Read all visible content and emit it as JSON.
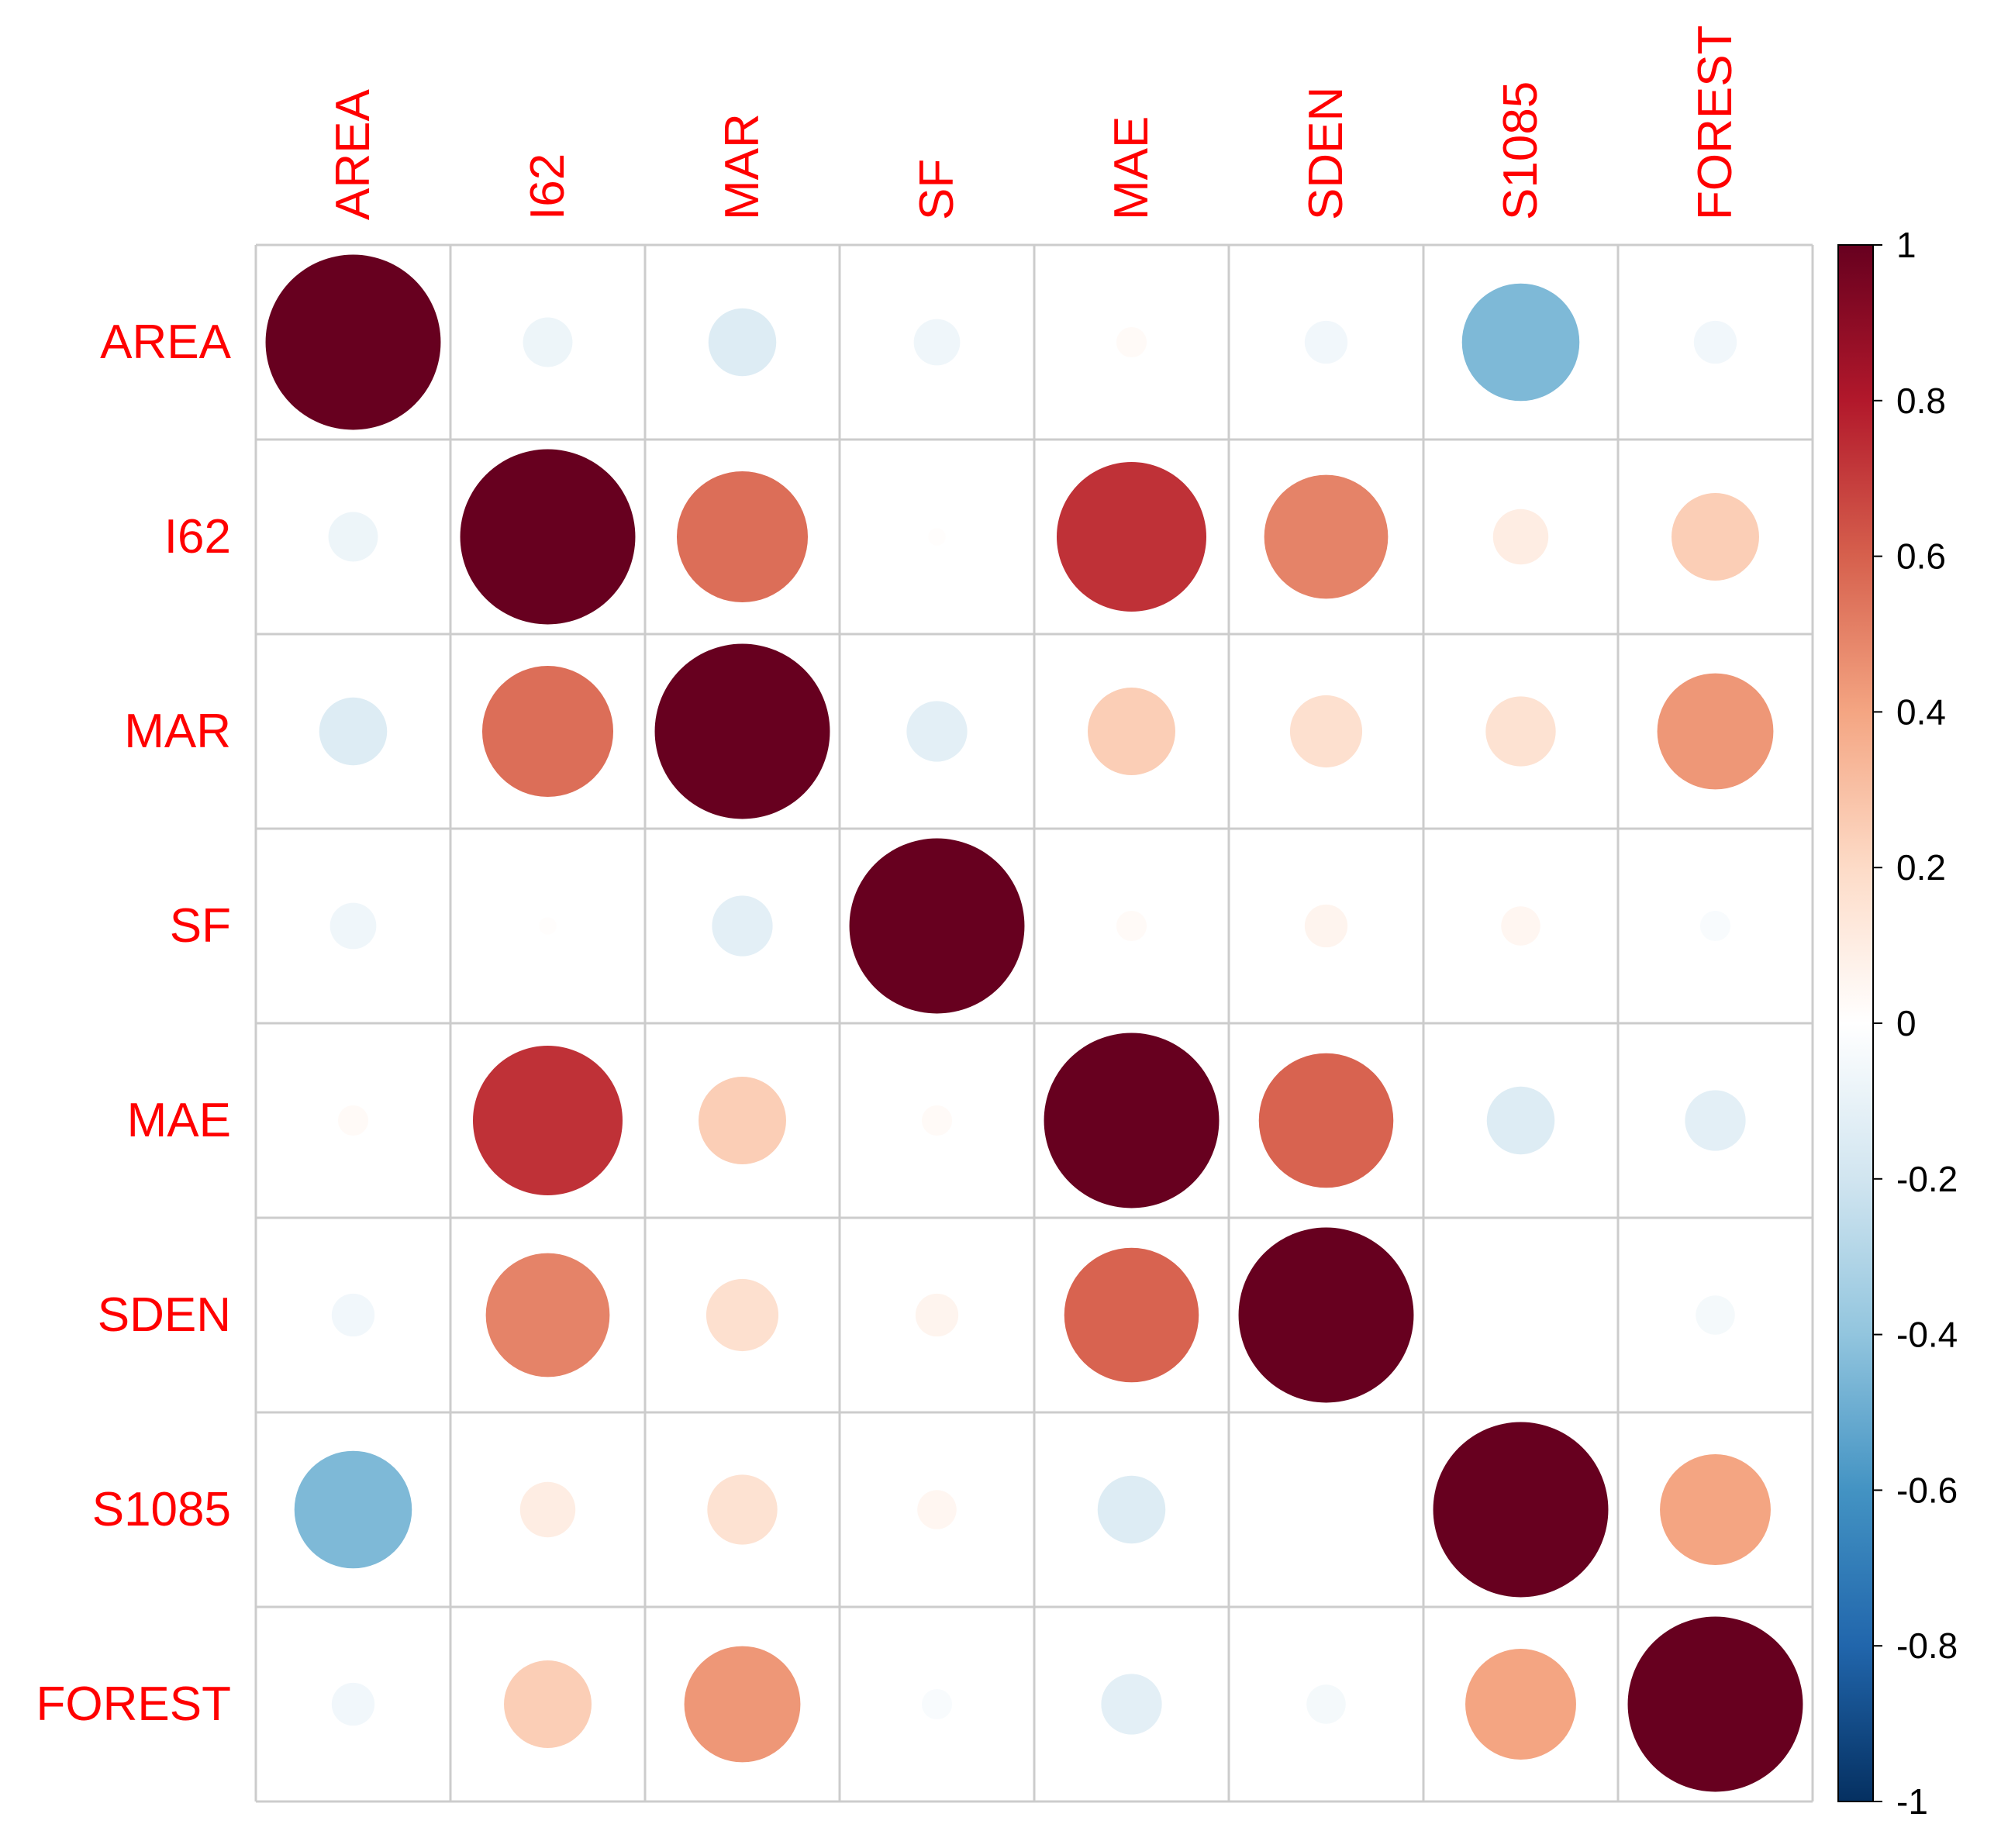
{
  "chart_data": {
    "type": "heatmap",
    "style": "corrplot-circle",
    "variables": [
      "AREA",
      "I62",
      "MAR",
      "SF",
      "MAE",
      "SDEN",
      "S1085",
      "FOREST"
    ],
    "matrix": [
      [
        1.0,
        -0.08,
        -0.15,
        -0.07,
        0.03,
        -0.06,
        -0.45,
        -0.06
      ],
      [
        -0.08,
        1.0,
        0.56,
        0.01,
        0.73,
        0.5,
        0.1,
        0.25
      ],
      [
        -0.15,
        0.56,
        1.0,
        -0.12,
        0.25,
        0.17,
        0.16,
        0.44
      ],
      [
        -0.07,
        0.01,
        -0.12,
        1.0,
        0.03,
        0.06,
        0.05,
        -0.03
      ],
      [
        0.03,
        0.73,
        0.25,
        0.03,
        1.0,
        0.59,
        -0.15,
        -0.12
      ],
      [
        -0.06,
        0.5,
        0.17,
        0.06,
        0.59,
        1.0,
        0.0,
        -0.05
      ],
      [
        -0.45,
        0.1,
        0.16,
        0.05,
        -0.15,
        0.0,
        1.0,
        0.4
      ],
      [
        -0.06,
        0.25,
        0.44,
        -0.03,
        -0.12,
        -0.05,
        0.4,
        1.0
      ]
    ],
    "colorbar": {
      "range": [
        -1,
        1
      ],
      "ticks": [
        "1",
        "0.8",
        "0.6",
        "0.4",
        "0.2",
        "0",
        "-0.2",
        "-0.4",
        "-0.6",
        "-0.8",
        "-1"
      ],
      "palette": [
        "#67001F",
        "#B2182B",
        "#D6604D",
        "#F4A582",
        "#FDDBC7",
        "#FFFFFF",
        "#D1E5F0",
        "#92C5DE",
        "#4393C3",
        "#2166AC",
        "#053061"
      ]
    },
    "label_color": "#FF0000",
    "title": "",
    "xlabel": "",
    "ylabel": ""
  }
}
